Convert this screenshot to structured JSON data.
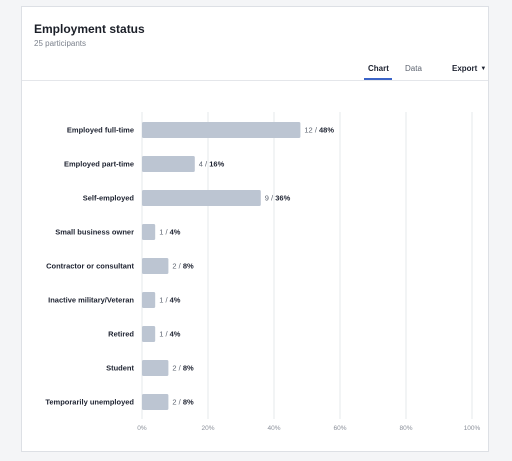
{
  "header": {
    "title": "Employment status",
    "subtitle": "25 participants"
  },
  "tabs": [
    {
      "label": "Chart",
      "active": true
    },
    {
      "label": "Data",
      "active": false
    }
  ],
  "export_label": "Export",
  "colors": {
    "bar": "#bcc5d2",
    "accent": "#3a63c7",
    "grid": "#e6e8eb"
  },
  "chart_data": {
    "type": "bar",
    "orientation": "horizontal",
    "categories": [
      "Employed full-time",
      "Employed part-time",
      "Self-employed",
      "Small business owner",
      "Contractor or consultant",
      "Inactive military/Veteran",
      "Retired",
      "Student",
      "Temporarily unemployed"
    ],
    "counts": [
      12,
      4,
      9,
      1,
      2,
      1,
      1,
      2,
      2
    ],
    "values": [
      48,
      16,
      36,
      4,
      8,
      4,
      4,
      8,
      8
    ],
    "data_labels": [
      "12 / 48%",
      "4 / 16%",
      "9 / 36%",
      "1 / 4%",
      "2 / 8%",
      "1 / 4%",
      "1 / 4%",
      "2 / 8%",
      "2 / 8%"
    ],
    "xlim": [
      0,
      100
    ],
    "xticks": [
      "0%",
      "20%",
      "40%",
      "60%",
      "80%",
      "100%"
    ],
    "grid": true,
    "title": "",
    "xlabel": "",
    "ylabel": ""
  }
}
